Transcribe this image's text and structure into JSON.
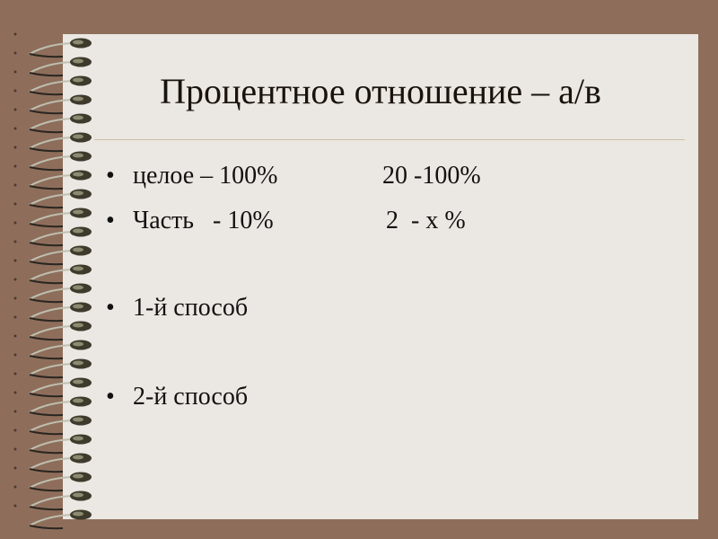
{
  "slide": {
    "title": "Процентное отношение – а/в",
    "bullets": [
      {
        "left": "целое – 100%",
        "right": "20 -100%"
      },
      {
        "left": "Часть   - 10%",
        "right": "2  - х %"
      },
      {
        "left": "1-й способ",
        "right": ""
      },
      {
        "left": "2-й способ",
        "right": ""
      }
    ],
    "bullet_char": "•"
  },
  "colors": {
    "background": "#8e6e5b",
    "paper": "#ebe7e2"
  }
}
